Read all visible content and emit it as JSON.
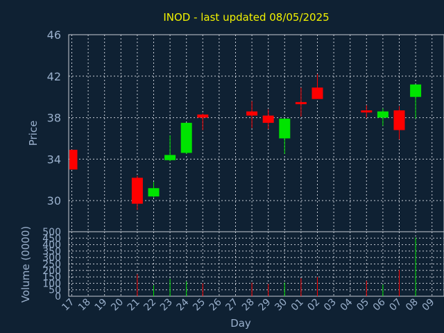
{
  "title": "INOD - last updated 08/05/2025",
  "ylabel_price": "Price",
  "ylabel_volume": "Volume (0000)",
  "xlabel": "Day",
  "colors": {
    "background": "#0f2133",
    "text": "#9ab0cc",
    "title": "#f2f200",
    "up": "#00e400",
    "down": "#ff0000",
    "grid": "#c8cdd6"
  },
  "chart_data": [
    {
      "type": "candlestick",
      "title": "INOD - last updated 08/05/2025",
      "ylabel": "Price",
      "ylim": [
        27,
        46
      ],
      "yticks": [
        30,
        34,
        38,
        42,
        46
      ],
      "grid": true,
      "categories": [
        "17",
        "18",
        "19",
        "20",
        "21",
        "22",
        "23",
        "24",
        "25",
        "26",
        "27",
        "28",
        "29",
        "30",
        "01",
        "02",
        "03",
        "04",
        "05",
        "06",
        "07",
        "08",
        "09"
      ],
      "candles": [
        {
          "day": "17",
          "open": 34.9,
          "close": 33.0,
          "high": 34.9,
          "low": 33.0
        },
        {
          "day": "21",
          "open": 32.2,
          "close": 29.7,
          "high": 32.4,
          "low": 29.1
        },
        {
          "day": "22",
          "open": 30.4,
          "close": 31.2,
          "high": 31.8,
          "low": 30.3
        },
        {
          "day": "23",
          "open": 33.9,
          "close": 34.4,
          "high": 36.3,
          "low": 33.8
        },
        {
          "day": "24",
          "open": 34.6,
          "close": 37.5,
          "high": 37.5,
          "low": 34.5
        },
        {
          "day": "25",
          "open": 38.3,
          "close": 38.0,
          "high": 38.4,
          "low": 36.8
        },
        {
          "day": "28",
          "open": 38.6,
          "close": 38.2,
          "high": 39.6,
          "low": 37.0
        },
        {
          "day": "29",
          "open": 38.2,
          "close": 37.5,
          "high": 38.8,
          "low": 36.9
        },
        {
          "day": "30",
          "open": 36.0,
          "close": 37.9,
          "high": 37.9,
          "low": 34.5
        },
        {
          "day": "01",
          "open": 39.5,
          "close": 39.3,
          "high": 40.9,
          "low": 38.1
        },
        {
          "day": "02",
          "open": 40.9,
          "close": 39.8,
          "high": 42.2,
          "low": 39.8
        },
        {
          "day": "05",
          "open": 38.7,
          "close": 38.6,
          "high": 39.2,
          "low": 38.0
        },
        {
          "day": "06",
          "open": 38.0,
          "close": 38.6,
          "high": 38.9,
          "low": 37.2
        },
        {
          "day": "07",
          "open": 38.7,
          "close": 36.8,
          "high": 39.1,
          "low": 35.9
        },
        {
          "day": "08",
          "open": 40.0,
          "close": 41.2,
          "high": 41.2,
          "low": 37.9
        }
      ]
    },
    {
      "type": "bar",
      "ylabel": "Volume (0000)",
      "xlabel": "Day",
      "ylim": [
        0,
        500
      ],
      "yticks": [
        0,
        50,
        100,
        150,
        200,
        250,
        300,
        350,
        400,
        450,
        500
      ],
      "grid": true,
      "categories": [
        "17",
        "18",
        "19",
        "20",
        "21",
        "22",
        "23",
        "24",
        "25",
        "26",
        "27",
        "28",
        "29",
        "30",
        "01",
        "02",
        "03",
        "04",
        "05",
        "06",
        "07",
        "08",
        "09"
      ],
      "bars": [
        {
          "day": "21",
          "value": 170,
          "direction": "down"
        },
        {
          "day": "22",
          "value": 85,
          "direction": "up"
        },
        {
          "day": "23",
          "value": 135,
          "direction": "up"
        },
        {
          "day": "24",
          "value": 115,
          "direction": "up"
        },
        {
          "day": "25",
          "value": 100,
          "direction": "down"
        },
        {
          "day": "28",
          "value": 105,
          "direction": "down"
        },
        {
          "day": "29",
          "value": 95,
          "direction": "down"
        },
        {
          "day": "30",
          "value": 105,
          "direction": "up"
        },
        {
          "day": "01",
          "value": 140,
          "direction": "down"
        },
        {
          "day": "02",
          "value": 150,
          "direction": "down"
        },
        {
          "day": "05",
          "value": 120,
          "direction": "down"
        },
        {
          "day": "06",
          "value": 90,
          "direction": "up"
        },
        {
          "day": "07",
          "value": 205,
          "direction": "down"
        },
        {
          "day": "08",
          "value": 455,
          "direction": "up"
        }
      ]
    }
  ]
}
